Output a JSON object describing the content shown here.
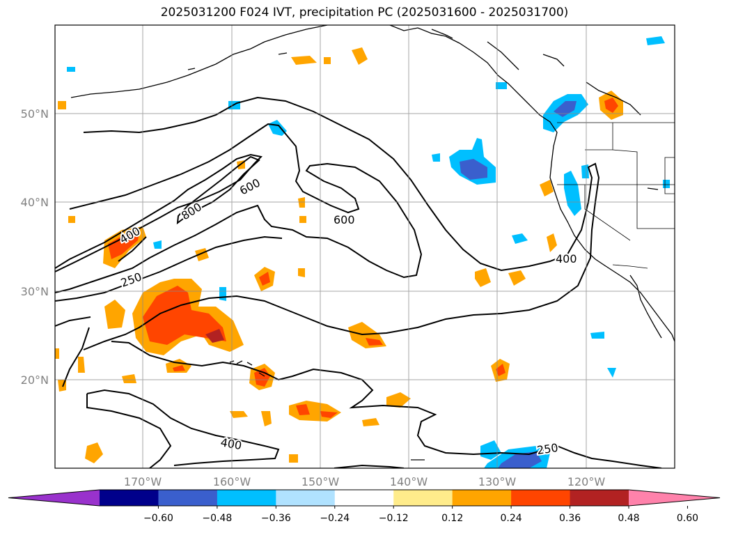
{
  "title": "2025031200 F024 IVT, precipitation PC (2025031600 - 2025031700)",
  "lat_labels": [
    "50°N",
    "40°N",
    "30°N",
    "20°N"
  ],
  "lon_labels": [
    "170°W",
    "160°W",
    "150°W",
    "140°W",
    "130°W",
    "120°W"
  ],
  "contour_labels": [
    "800",
    "600",
    "600",
    "400",
    "250",
    "400",
    "400",
    "250"
  ],
  "colorbar": {
    "ticks": [
      "−0.60",
      "−0.48",
      "−0.36",
      "−0.24",
      "−0.12",
      "0.12",
      "0.24",
      "0.36",
      "0.48",
      "0.60"
    ],
    "colors": [
      "#9932cc",
      "#00008b",
      "#3a5fcd",
      "#00bfff",
      "#b0e2ff",
      "#ffffff",
      "#ffec8b",
      "#ffa500",
      "#ff4500",
      "#b22222",
      "#ff82ab"
    ]
  }
}
